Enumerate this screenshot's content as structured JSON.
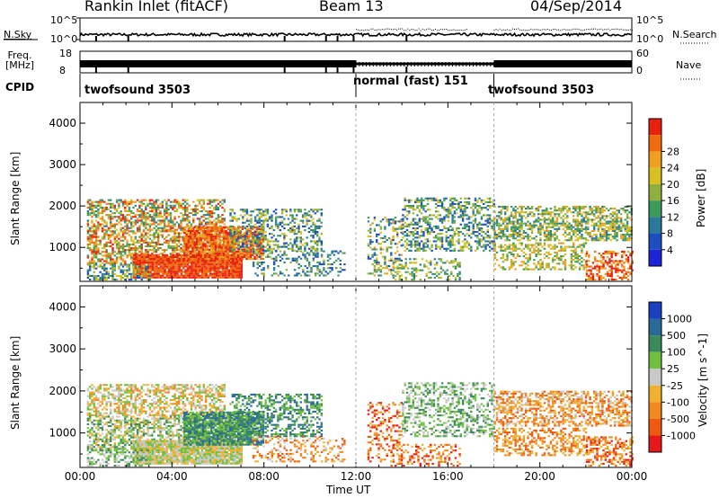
{
  "header": {
    "title": "Rankin Inlet (fitACF)",
    "beam": "Beam 13",
    "date": "04/Sep/2014"
  },
  "noise_panel": {
    "left_label": "N.Sky",
    "right_label": "N.Search",
    "left_ticks": [
      "10^5",
      "10^0"
    ],
    "right_ticks": [
      "10^5",
      "10^0"
    ]
  },
  "freq_panel": {
    "left_label": "Freq. [MHz]",
    "right_label": "Nave",
    "left_ticks": [
      "18",
      "8"
    ],
    "right_ticks": [
      "60",
      "0"
    ]
  },
  "cpid": {
    "label": "CPID",
    "segments": [
      {
        "name": "twofsound 3503",
        "start_hour": 0,
        "end_hour": 12
      },
      {
        "name": "normal (fast) 151",
        "start_hour": 12,
        "end_hour": 18
      },
      {
        "name": "twofsound 3503",
        "start_hour": 18,
        "end_hour": 24
      }
    ]
  },
  "x_axis": {
    "label": "Time UT",
    "ticks": [
      "00:00",
      "04:00",
      "08:00",
      "12:00",
      "16:00",
      "20:00",
      "00:00"
    ],
    "range_hours": [
      0,
      24
    ]
  },
  "chart_data": [
    {
      "type": "heatmap",
      "parameter": "Power",
      "ylabel": "Slant Range [km]",
      "yticks": [
        1000,
        2000,
        3000,
        4000
      ],
      "ylim": [
        180,
        4500
      ],
      "xlim_hours": [
        0,
        24
      ],
      "colorbar": {
        "label": "Power [dB]",
        "ticks": [
          4,
          8,
          12,
          16,
          20,
          24,
          28
        ],
        "colors": [
          "#1b24d6",
          "#1b4fc0",
          "#2a7a9a",
          "#3d9a5a",
          "#8fb040",
          "#d8c020",
          "#f0a020",
          "#f06a10",
          "#e82010"
        ]
      }
    },
    {
      "type": "heatmap",
      "parameter": "Velocity",
      "ylabel": "Slant Range [km]",
      "yticks": [
        1000,
        2000,
        3000,
        4000
      ],
      "ylim": [
        180,
        4500
      ],
      "xlim_hours": [
        0,
        24
      ],
      "colorbar": {
        "label": "Velocity [m s^-1]",
        "ticks": [
          "1000",
          "500",
          "100",
          "25",
          "-25",
          "-100",
          "-500",
          "-1000"
        ],
        "colors": [
          "#1840c0",
          "#2a6a9a",
          "#3a8a5a",
          "#70c040",
          "#c8c8c8",
          "#f0b030",
          "#f08a20",
          "#f05a10",
          "#e81818"
        ]
      }
    }
  ]
}
